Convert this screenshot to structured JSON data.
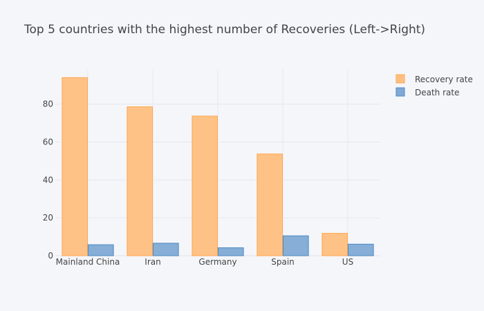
{
  "chart_data": {
    "type": "bar",
    "title": "Top 5 countries with the highest number of Recoveries (Left->Right)",
    "xlabel": "",
    "ylabel": "",
    "categories": [
      "Mainland China",
      "Iran",
      "Germany",
      "Spain",
      "US"
    ],
    "series": [
      {
        "name": "Recovery rate",
        "values": [
          94.0,
          78.6,
          73.7,
          53.7,
          11.8
        ],
        "color": "#ffbf80",
        "stroke": "#ffa64d"
      },
      {
        "name": "Death rate",
        "values": [
          5.8,
          6.6,
          4.2,
          10.5,
          6.1
        ],
        "color": "#80aad4",
        "stroke": "#4d88c2"
      }
    ],
    "ylim": [
      0,
      98.5
    ],
    "yticks": [
      0,
      20,
      40,
      60,
      80
    ],
    "grid": true,
    "legend_position": "top-right",
    "background": "#f5f6fa",
    "gridcolor": "#e6e8ee"
  }
}
